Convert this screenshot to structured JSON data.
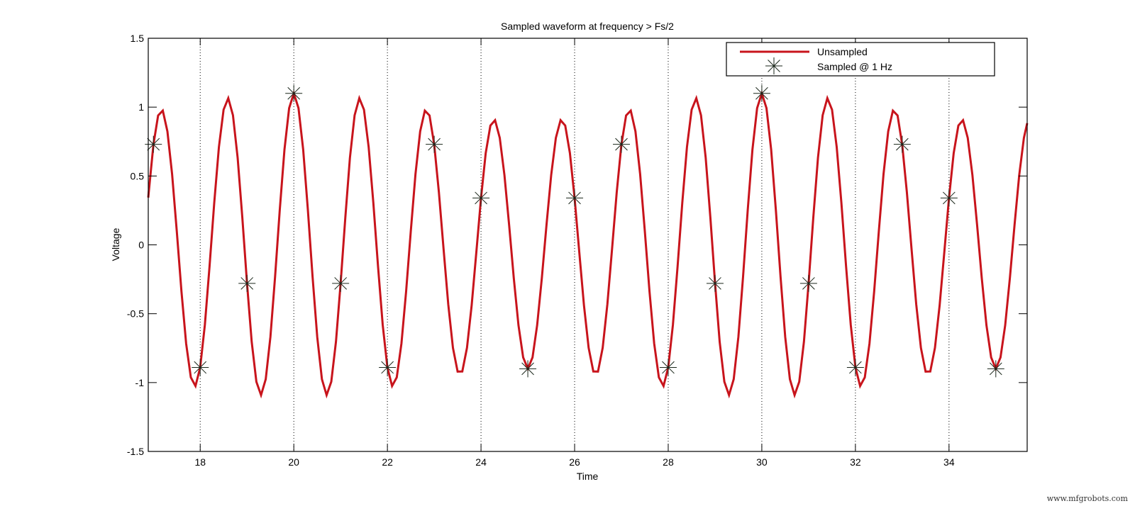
{
  "chart_data": {
    "type": "line",
    "title": "Sampled waveform at frequency > Fs/2",
    "xlabel": "Time",
    "ylabel": "Voltage",
    "xlim": [
      16.89,
      35.67
    ],
    "ylim": [
      -1.5,
      1.5
    ],
    "xticks": [
      18,
      20,
      22,
      24,
      26,
      28,
      30,
      32,
      34
    ],
    "yticks": [
      -1.5,
      -1,
      -0.5,
      0,
      0.5,
      1,
      1.5
    ],
    "ytick_labels": [
      "-1.5",
      "-1",
      "-0.5",
      "0",
      "0.5",
      "1",
      "1.5"
    ],
    "grid": {
      "x": "dotted vertical at x ticks",
      "y": false
    },
    "legend_position": "top-right (inside)",
    "series": [
      {
        "name": "Unsampled",
        "style": "solid line",
        "color": "#c8141c",
        "model": "cos(2*pi*0.7*(t-20)) + 0.1*cos(2*pi*0.8*(t-20))",
        "plot_step": 0.1
      },
      {
        "name": "Sampled @ 1 Hz",
        "style": "asterisk markers",
        "color": "#1a261a",
        "x": [
          17,
          18,
          19,
          20,
          21,
          22,
          23,
          24,
          25,
          26,
          27,
          28,
          29,
          30,
          31,
          32,
          33,
          34,
          35
        ],
        "y": [
          0.73,
          -0.89,
          -0.28,
          1.1,
          -0.28,
          -0.89,
          0.73,
          0.34,
          -0.9,
          0.34,
          0.73,
          -0.89,
          -0.28,
          1.1,
          -0.28,
          -0.89,
          0.73,
          0.34,
          -0.9
        ]
      }
    ]
  },
  "legend": {
    "items": [
      {
        "label": "Unsampled",
        "symbol": "red-line"
      },
      {
        "label": "Sampled @ 1 Hz",
        "symbol": "asterisk"
      }
    ]
  },
  "watermark": "www.mfgrobots.com"
}
